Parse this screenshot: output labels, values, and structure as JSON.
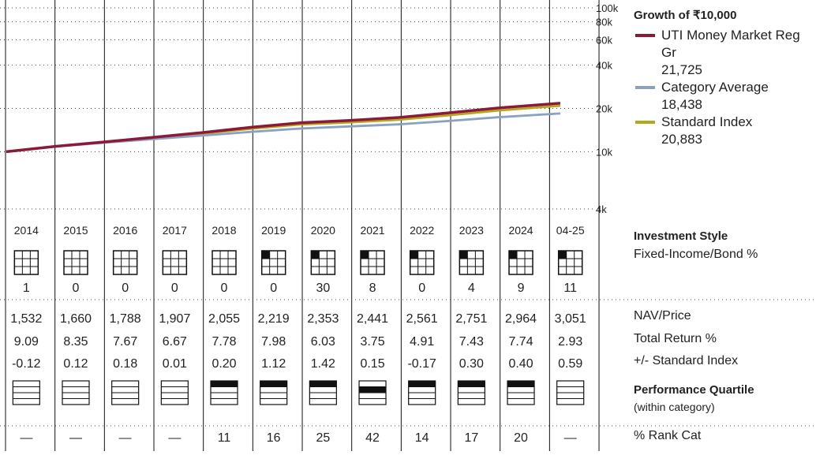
{
  "chart_data": {
    "type": "line",
    "title": "Growth of ₹10,000",
    "y_scale": "log",
    "ylim": [
      4000,
      100000
    ],
    "y_ticks": [
      "100k",
      "80k",
      "60k",
      "40k",
      "20k",
      "10k",
      "4k"
    ],
    "y_tick_values": [
      100000,
      80000,
      60000,
      40000,
      20000,
      10000,
      4000
    ],
    "x": [
      2014,
      2015,
      2016,
      2017,
      2018,
      2019,
      2020,
      2021,
      2022,
      2023,
      2024,
      2025.3
    ],
    "series": [
      {
        "name": "UTI Money Market Reg Gr",
        "last_value": "21,725",
        "color": "#8b1a3a",
        "values": [
          10000,
          10900,
          11700,
          12600,
          13600,
          14800,
          15900,
          16500,
          17300,
          18600,
          20100,
          21725
        ]
      },
      {
        "name": "Category Average",
        "last_value": "18,438",
        "color": "#8aa1c2",
        "values": [
          10000,
          10850,
          11550,
          12250,
          12950,
          13750,
          14500,
          15000,
          15500,
          16350,
          17350,
          18438
        ]
      },
      {
        "name": "Standard Index",
        "last_value": "20,883",
        "color": "#b5a71c",
        "values": [
          10000,
          10880,
          11650,
          12450,
          13350,
          14450,
          15450,
          16000,
          16700,
          17900,
          19300,
          20883
        ]
      }
    ]
  },
  "years": [
    "2014",
    "2015",
    "2016",
    "2017",
    "2018",
    "2019",
    "2020",
    "2021",
    "2022",
    "2023",
    "2024",
    "04-25"
  ],
  "style_values": [
    "1",
    "0",
    "0",
    "0",
    "0",
    "0",
    "30",
    "8",
    "0",
    "4",
    "9",
    "11"
  ],
  "style_box_filled": [
    false,
    false,
    false,
    false,
    false,
    true,
    true,
    true,
    true,
    true,
    true,
    true
  ],
  "nav": [
    "1,532",
    "1,660",
    "1,788",
    "1,907",
    "2,055",
    "2,219",
    "2,353",
    "2,441",
    "2,561",
    "2,751",
    "2,964",
    "3,051"
  ],
  "total_return": [
    "9.09",
    "8.35",
    "7.67",
    "6.67",
    "7.78",
    "7.98",
    "6.03",
    "3.75",
    "4.91",
    "7.43",
    "7.74",
    "2.93"
  ],
  "plus_minus": [
    "-0.12",
    "0.12",
    "0.18",
    "0.01",
    "0.20",
    "1.12",
    "1.42",
    "0.15",
    "-0.17",
    "0.30",
    "0.40",
    "0.59"
  ],
  "quartile": [
    0,
    0,
    0,
    0,
    1,
    1,
    1,
    2,
    1,
    1,
    1,
    0
  ],
  "rank": [
    "—",
    "—",
    "—",
    "—",
    "11",
    "16",
    "25",
    "42",
    "14",
    "17",
    "20",
    "—"
  ],
  "labels": {
    "legend_title": "Growth of ₹10,000",
    "investment_style": "Investment Style",
    "style_sub": "Fixed-Income/Bond %",
    "nav_price": "NAV/Price",
    "total_return": "Total Return %",
    "plus_minus": "+/- Standard Index",
    "performance_quartile": "Performance Quartile",
    "within_category": "(within category)",
    "rank_cat": "% Rank Cat"
  }
}
